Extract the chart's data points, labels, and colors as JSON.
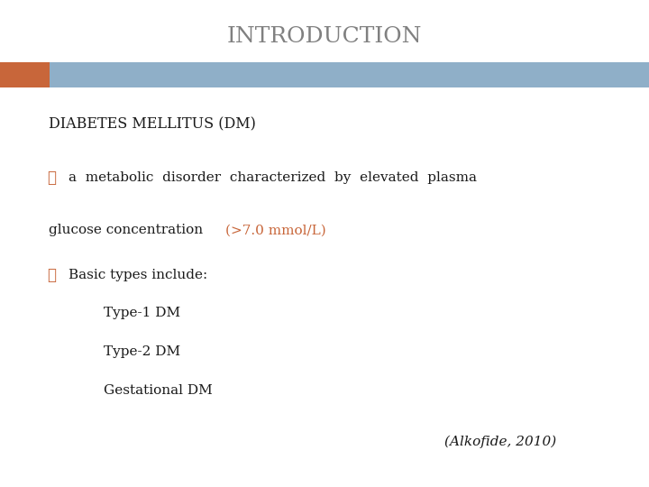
{
  "title": "INTRODUCTION",
  "title_color": "#808080",
  "title_fontsize": 18,
  "bg_color": "#ffffff",
  "header_bar_color": "#8fafc8",
  "header_bar_left_color": "#c8663a",
  "dm_label": "DIABETES MELLITUS (DM)",
  "dm_label_color": "#1a1a1a",
  "dm_fontsize": 11.5,
  "bullet_color": "#c8663a",
  "bullet_char": "❖",
  "line1_pre": "a  metabolic  disorder  characterized  by  elevated  plasma",
  "line2_black": "glucose concentration ",
  "line2_red": "(>7.0 mmol/L)",
  "line2_red_color": "#c8663a",
  "line3_text": "Basic types include:",
  "sub_items": [
    "Type-1 DM",
    "Type-2 DM",
    "Gestational DM"
  ],
  "citation": "(Alkofide, 2010)",
  "text_color": "#1a1a1a",
  "body_fontsize": 11,
  "sub_fontsize": 11,
  "citation_fontsize": 11,
  "font_family": "serif"
}
